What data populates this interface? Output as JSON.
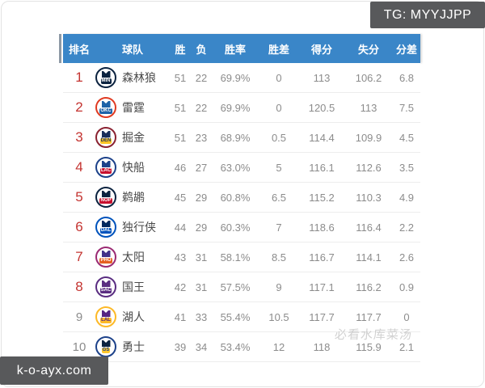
{
  "overlays": {
    "top_right_badge": "TG: MYYJJPP",
    "bottom_left_badge": "k-o-ayx.com",
    "watermark": "必看水库菜汤"
  },
  "colors": {
    "header_bg": "#3a86c8",
    "rank_red": "#c43431",
    "rank_gray": "#8c8c8c",
    "badge_bg": "#58595b"
  },
  "table": {
    "headers": [
      "排名",
      "球队",
      "胜",
      "负",
      "胜率",
      "胜差",
      "得分",
      "失分",
      "分差"
    ],
    "rows": [
      {
        "rank": "1",
        "rank_red": true,
        "team": "森林狼",
        "abbr": "MIN",
        "wins": "51",
        "losses": "22",
        "pct": "69.9%",
        "gb": "0",
        "pf": "113",
        "pa": "106.2",
        "diff": "6.8",
        "logo": {
          "ring": "#0C2340",
          "jersey": "#0C2340",
          "banner": "#0C2340",
          "text": "#ffffff"
        }
      },
      {
        "rank": "2",
        "rank_red": true,
        "team": "雷霆",
        "abbr": "OKC",
        "wins": "51",
        "losses": "22",
        "pct": "69.9%",
        "gb": "0",
        "pf": "120.5",
        "pa": "113",
        "diff": "7.5",
        "logo": {
          "ring": "#E03A21",
          "jersey": "#1D62A8",
          "banner": "#1D62A8",
          "text": "#ffffff"
        }
      },
      {
        "rank": "3",
        "rank_red": true,
        "team": "掘金",
        "abbr": "DEN",
        "wins": "51",
        "losses": "23",
        "pct": "68.9%",
        "gb": "0.5",
        "pf": "114.4",
        "pa": "109.9",
        "diff": "4.5",
        "logo": {
          "ring": "#8B2332",
          "jersey": "#1A2E5A",
          "banner": "#FEC524",
          "text": "#1A2E5A"
        }
      },
      {
        "rank": "4",
        "rank_red": true,
        "team": "快船",
        "abbr": "LAC",
        "wins": "46",
        "losses": "27",
        "pct": "63.0%",
        "gb": "5",
        "pf": "116.1",
        "pa": "112.6",
        "diff": "3.5",
        "logo": {
          "ring": "#1D428A",
          "jersey": "#1D428A",
          "banner": "#C8102E",
          "text": "#ffffff"
        }
      },
      {
        "rank": "5",
        "rank_red": true,
        "team": "鹈鹕",
        "abbr": "NOP",
        "wins": "45",
        "losses": "29",
        "pct": "60.8%",
        "gb": "6.5",
        "pf": "115.2",
        "pa": "110.3",
        "diff": "4.9",
        "logo": {
          "ring": "#0C2340",
          "jersey": "#0C2340",
          "banner": "#C8102E",
          "text": "#ffffff"
        }
      },
      {
        "rank": "6",
        "rank_red": true,
        "team": "独行侠",
        "abbr": "DAL",
        "wins": "44",
        "losses": "29",
        "pct": "60.3%",
        "gb": "7",
        "pf": "118.6",
        "pa": "116.4",
        "diff": "2.2",
        "logo": {
          "ring": "#0053BC",
          "jersey": "#00285E",
          "banner": "#0053BC",
          "text": "#ffffff"
        }
      },
      {
        "rank": "7",
        "rank_red": true,
        "team": "太阳",
        "abbr": "PHO",
        "wins": "43",
        "losses": "31",
        "pct": "58.1%",
        "gb": "8.5",
        "pf": "116.7",
        "pa": "114.1",
        "diff": "2.6",
        "logo": {
          "ring": "#9B2A73",
          "jersey": "#423189",
          "banner": "#E56020",
          "text": "#ffffff"
        }
      },
      {
        "rank": "8",
        "rank_red": true,
        "team": "国王",
        "abbr": "SAC",
        "wins": "42",
        "losses": "31",
        "pct": "57.5%",
        "gb": "9",
        "pf": "117.1",
        "pa": "116.2",
        "diff": "0.9",
        "logo": {
          "ring": "#5A2D81",
          "jersey": "#5A2D81",
          "banner": "#5A2D81",
          "text": "#ffffff"
        }
      },
      {
        "rank": "9",
        "rank_red": false,
        "team": "湖人",
        "abbr": "LAL",
        "wins": "41",
        "losses": "33",
        "pct": "55.4%",
        "gb": "10.5",
        "pf": "117.7",
        "pa": "117.7",
        "diff": "0",
        "logo": {
          "ring": "#FDB927",
          "jersey": "#552583",
          "banner": "#FDB927",
          "text": "#552583"
        }
      },
      {
        "rank": "10",
        "rank_red": false,
        "team": "勇士",
        "abbr": "GS",
        "wins": "39",
        "losses": "34",
        "pct": "53.4%",
        "gb": "12",
        "pf": "118",
        "pa": "115.9",
        "diff": "2.1",
        "logo": {
          "ring": "#1D428A",
          "jersey": "#0C2340",
          "banner": "#FFC72C",
          "text": "#1D428A"
        }
      }
    ]
  }
}
